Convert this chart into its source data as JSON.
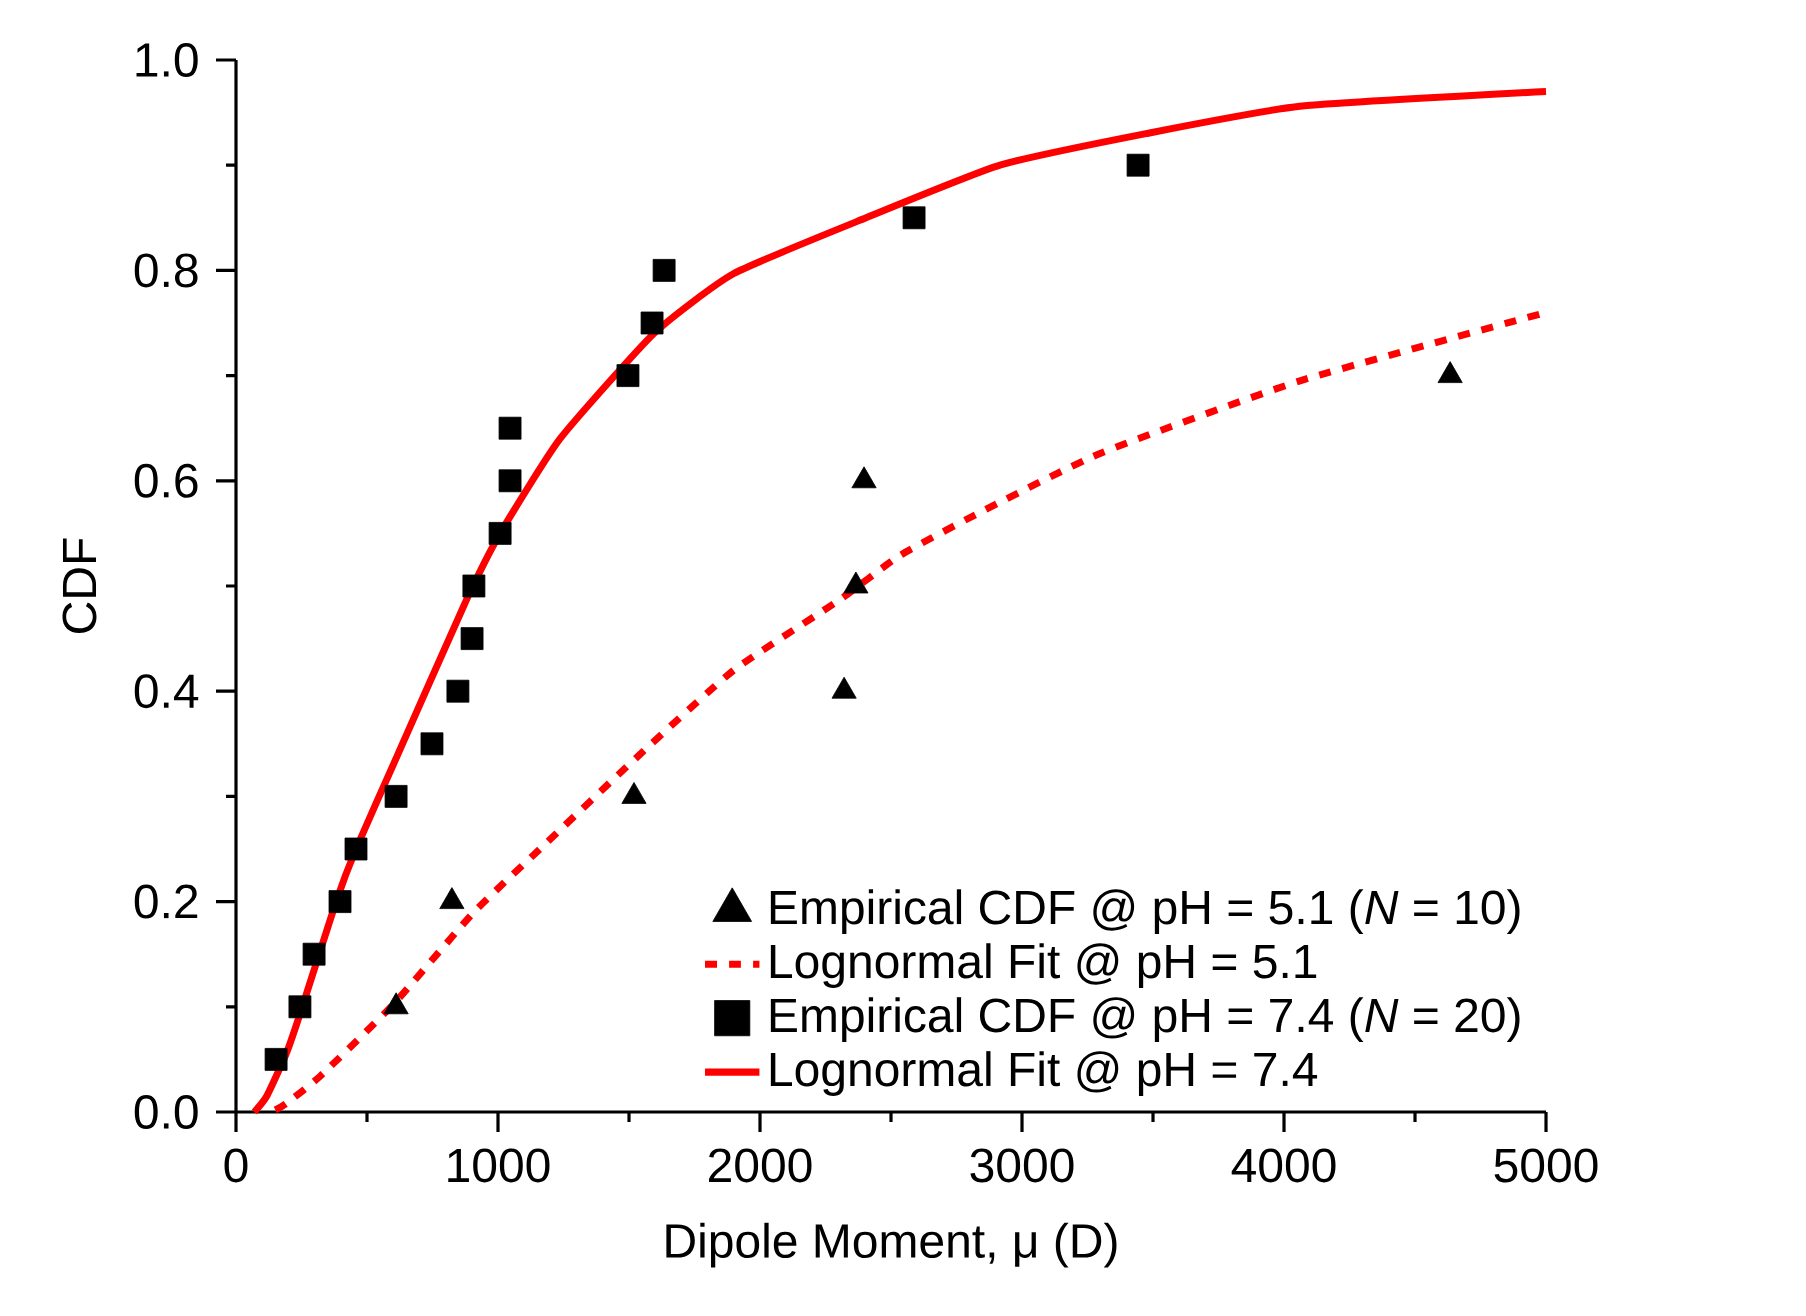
{
  "chart_data": {
    "type": "scatter",
    "xlabel": "Dipole Moment, μ (D)",
    "ylabel": "CDF",
    "xlim": [
      0,
      5000
    ],
    "ylim": [
      0,
      1.0
    ],
    "xticks": [
      0,
      1000,
      2000,
      3000,
      4000,
      5000
    ],
    "yticks": [
      {
        "value": 0,
        "label": "0.0"
      },
      {
        "value": 0.2,
        "label": "0.2"
      },
      {
        "value": 0.4,
        "label": "0.4"
      },
      {
        "value": 0.6,
        "label": "0.6"
      },
      {
        "value": 0.8,
        "label": "0.8"
      },
      {
        "value": 1.0,
        "label": "1.0"
      }
    ],
    "grid": false,
    "legend": "bottom right",
    "series": [
      {
        "name": "Empirical CDF @ pH = 5.1 (*N* = 10)",
        "marker": "triangle",
        "color": "#000000",
        "x": [
          611,
          824,
          1519,
          2321,
          2366,
          2397,
          4634
        ],
        "values": [
          0.1,
          0.2,
          0.3,
          0.4,
          0.5,
          0.6,
          0.7
        ]
      },
      {
        "name": "Lognormal Fit @ pH = 5.1",
        "type": "line",
        "line_style": "dotted",
        "color": "#ff0000",
        "x": [
          150,
          191,
          321,
          603,
          908,
          1160,
          1542,
          1900,
          2305,
          2534,
          2840,
          3298,
          4061,
          5000
        ],
        "values": [
          0.002,
          0.008,
          0.034,
          0.103,
          0.19,
          0.25,
          0.34,
          0.42,
          0.487,
          0.529,
          0.57,
          0.626,
          0.695,
          0.76
        ]
      },
      {
        "name": "Empirical CDF @ pH = 7.4 (*N* = 20)",
        "marker": "square",
        "color": "#000000",
        "x": [
          153,
          244,
          298,
          397,
          458,
          611,
          748,
          847,
          901,
          908,
          1008,
          1046,
          1046,
          1496,
          1588,
          1634,
          2588,
          3443
        ],
        "values": [
          0.05,
          0.1,
          0.15,
          0.2,
          0.25,
          0.3,
          0.35,
          0.4,
          0.45,
          0.5,
          0.55,
          0.6,
          0.65,
          0.7,
          0.75,
          0.8,
          0.85,
          0.9
        ]
      },
      {
        "name": "Lognormal Fit @ pH = 7.4",
        "type": "line",
        "line_style": "solid",
        "color": "#ff0000",
        "x": [
          70,
          117,
          191,
          244,
          382,
          458,
          600,
          880,
          1008,
          1237,
          1595,
          1900,
          2405,
          2916,
          3473,
          4061,
          5000
        ],
        "values": [
          0.0,
          0.015,
          0.055,
          0.093,
          0.2,
          0.25,
          0.33,
          0.487,
          0.55,
          0.64,
          0.74,
          0.797,
          0.85,
          0.9,
          0.93,
          0.956,
          0.97
        ]
      }
    ]
  }
}
